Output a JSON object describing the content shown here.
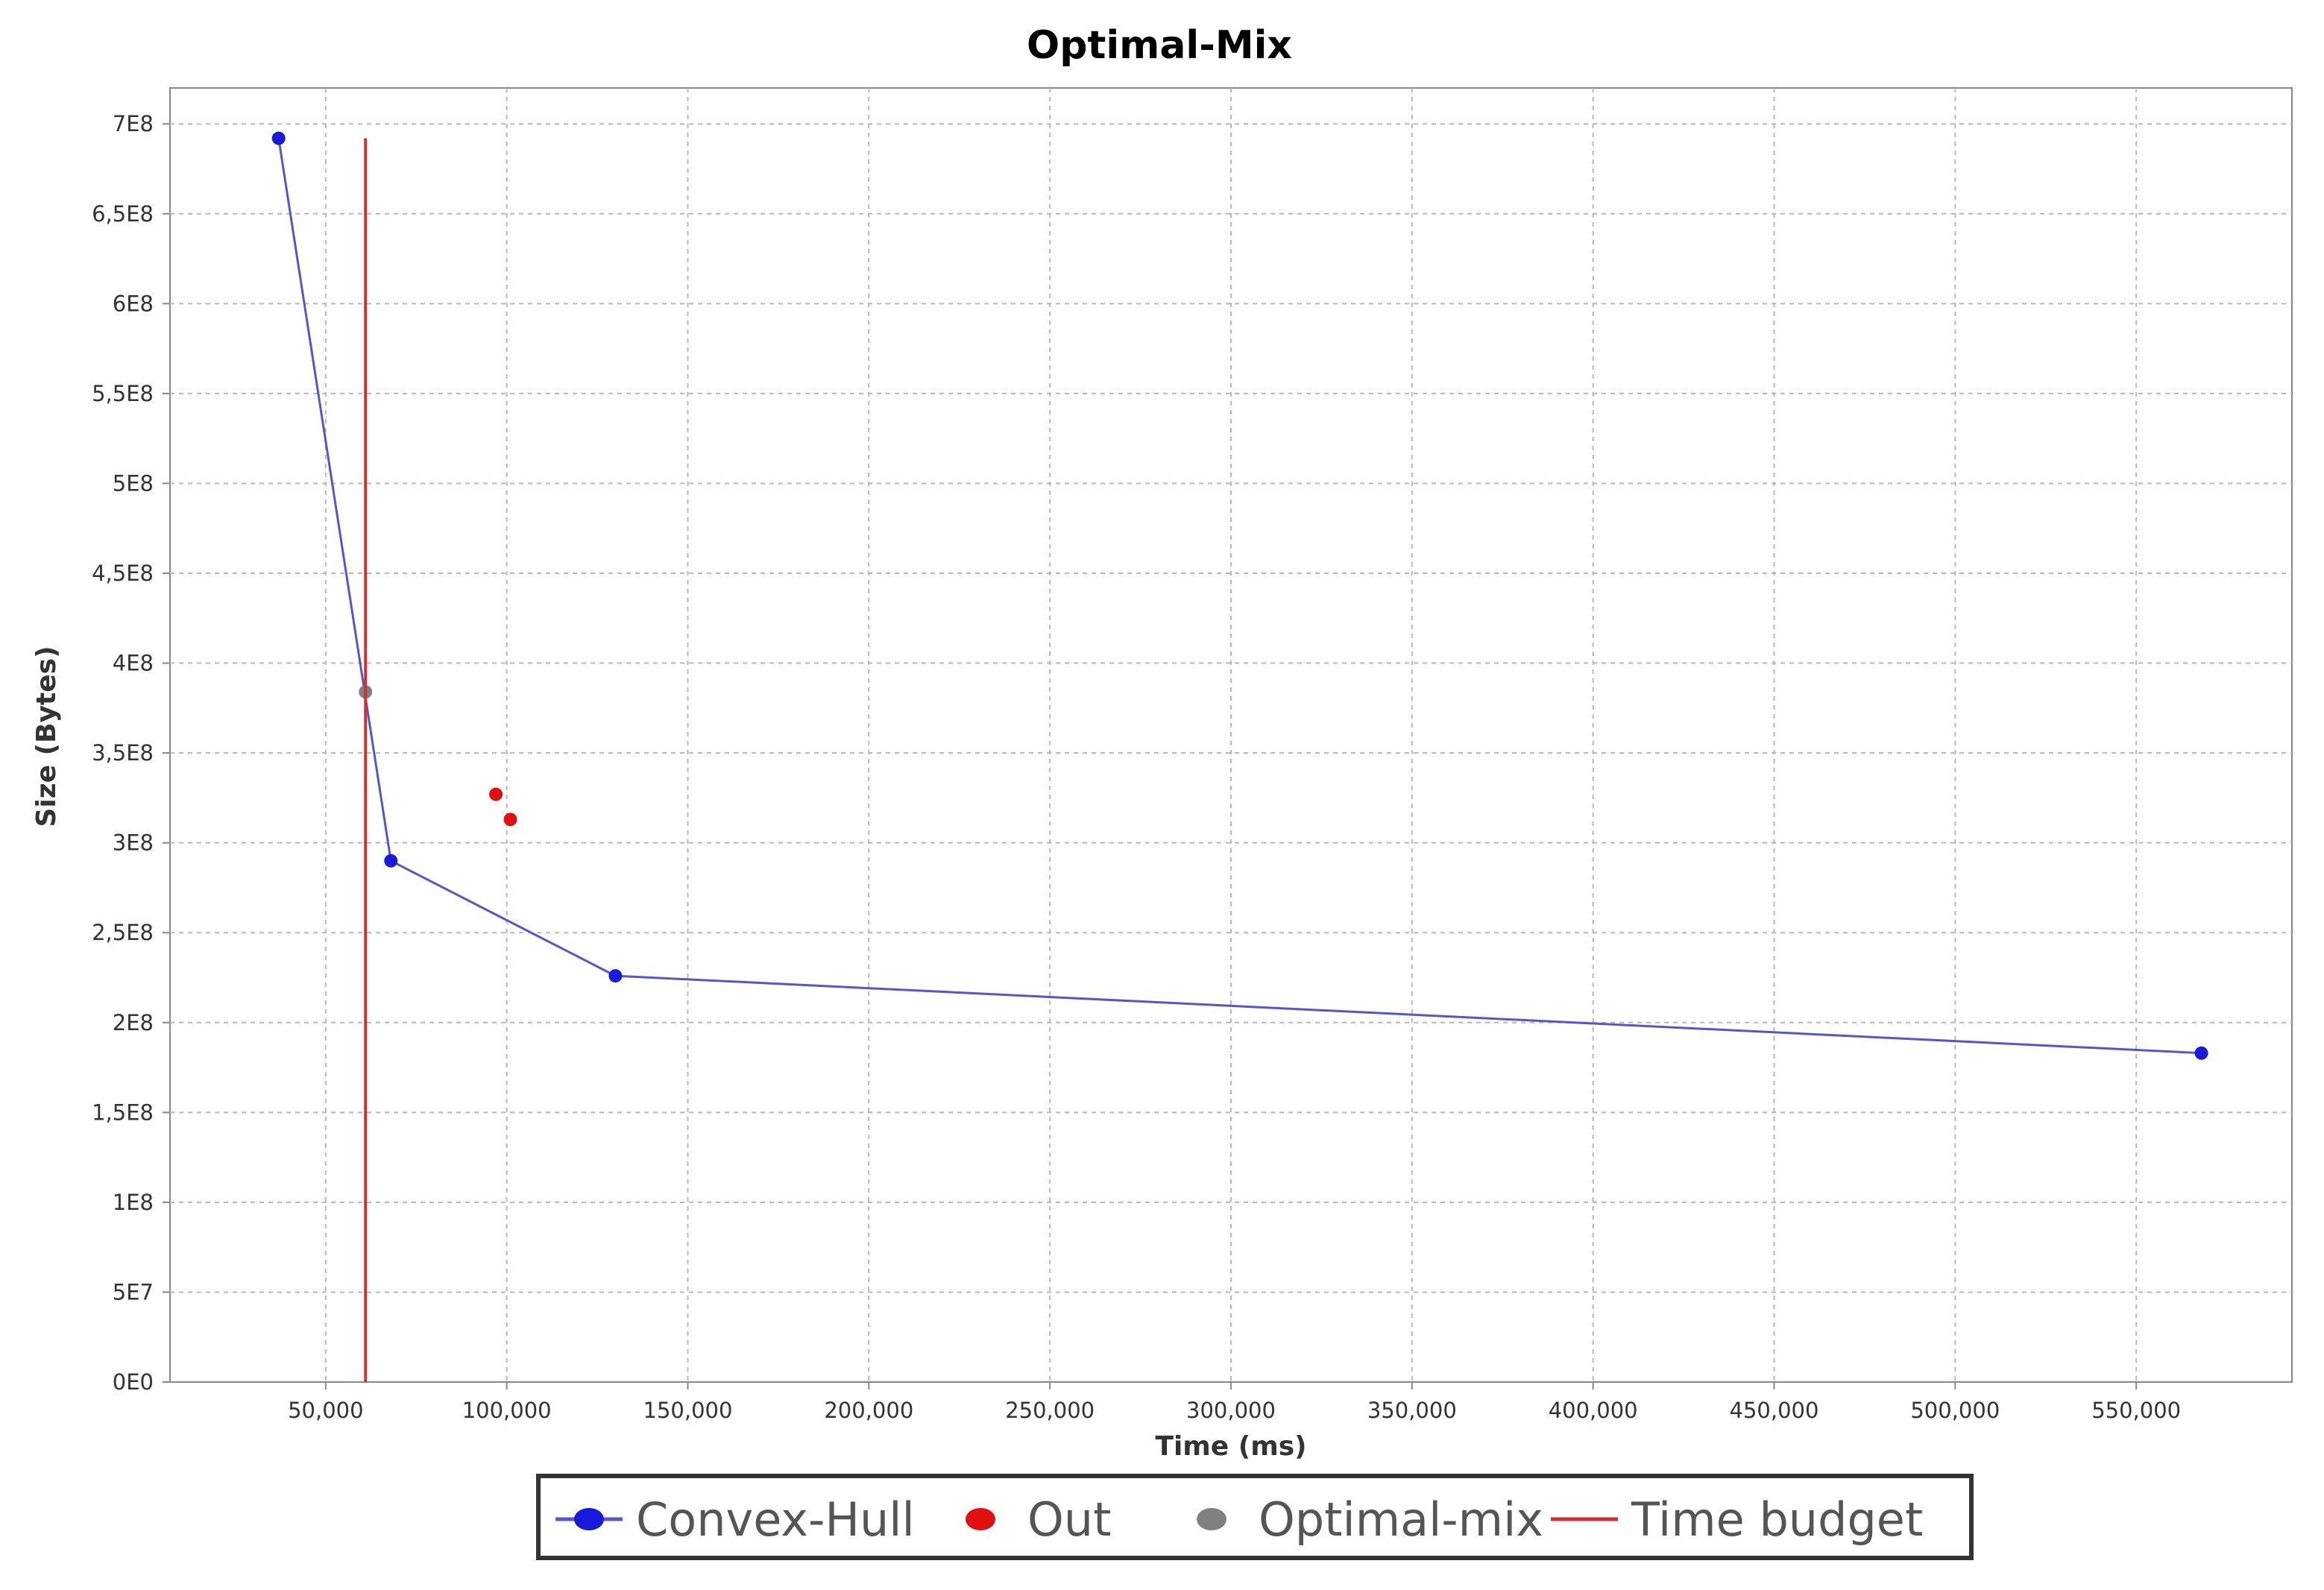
{
  "chart_data": {
    "type": "scatter",
    "title": "Optimal-Mix",
    "xlabel": "Time (ms)",
    "ylabel": "Size (Bytes)",
    "xlim": [
      7000,
      593000
    ],
    "ylim": [
      0,
      720000000
    ],
    "x_ticks": [
      {
        "value": 50000,
        "label": "50,000"
      },
      {
        "value": 100000,
        "label": "100,000"
      },
      {
        "value": 150000,
        "label": "150,000"
      },
      {
        "value": 200000,
        "label": "200,000"
      },
      {
        "value": 250000,
        "label": "250,000"
      },
      {
        "value": 300000,
        "label": "300,000"
      },
      {
        "value": 350000,
        "label": "350,000"
      },
      {
        "value": 400000,
        "label": "400,000"
      },
      {
        "value": 450000,
        "label": "450,000"
      },
      {
        "value": 500000,
        "label": "500,000"
      },
      {
        "value": 550000,
        "label": "550,000"
      }
    ],
    "y_ticks": [
      {
        "value": 0,
        "label": "0E0"
      },
      {
        "value": 50000000,
        "label": "5E7"
      },
      {
        "value": 100000000,
        "label": "1E8"
      },
      {
        "value": 150000000,
        "label": "1,5E8"
      },
      {
        "value": 200000000,
        "label": "2E8"
      },
      {
        "value": 250000000,
        "label": "2,5E8"
      },
      {
        "value": 300000000,
        "label": "3E8"
      },
      {
        "value": 350000000,
        "label": "3,5E8"
      },
      {
        "value": 400000000,
        "label": "4E8"
      },
      {
        "value": 450000000,
        "label": "4,5E8"
      },
      {
        "value": 500000000,
        "label": "5E8"
      },
      {
        "value": 550000000,
        "label": "5,5E8"
      },
      {
        "value": 600000000,
        "label": "6E8"
      },
      {
        "value": 650000000,
        "label": "6,5E8"
      },
      {
        "value": 700000000,
        "label": "7E8"
      }
    ],
    "grid": true,
    "legend_position": "bottom",
    "series": [
      {
        "name": "Convex-Hull",
        "kind": "line-markers",
        "color": "#1a1adb",
        "line_color": "#5555cc",
        "points": [
          {
            "x": 37000,
            "y": 692000000
          },
          {
            "x": 68000,
            "y": 290000000
          },
          {
            "x": 130000,
            "y": 226000000
          },
          {
            "x": 568000,
            "y": 183000000
          }
        ]
      },
      {
        "name": "Out",
        "kind": "markers",
        "color": "#e01010",
        "points": [
          {
            "x": 97000,
            "y": 327000000
          },
          {
            "x": 101000,
            "y": 313000000
          }
        ]
      },
      {
        "name": "Optimal-mix",
        "kind": "markers",
        "color": "#808080",
        "points": [
          {
            "x": 61000,
            "y": 384000000
          }
        ]
      },
      {
        "name": "Time budget",
        "kind": "vertical-line",
        "color": "#d03030",
        "x": 61000,
        "y_range": [
          0,
          692000000
        ]
      }
    ]
  }
}
